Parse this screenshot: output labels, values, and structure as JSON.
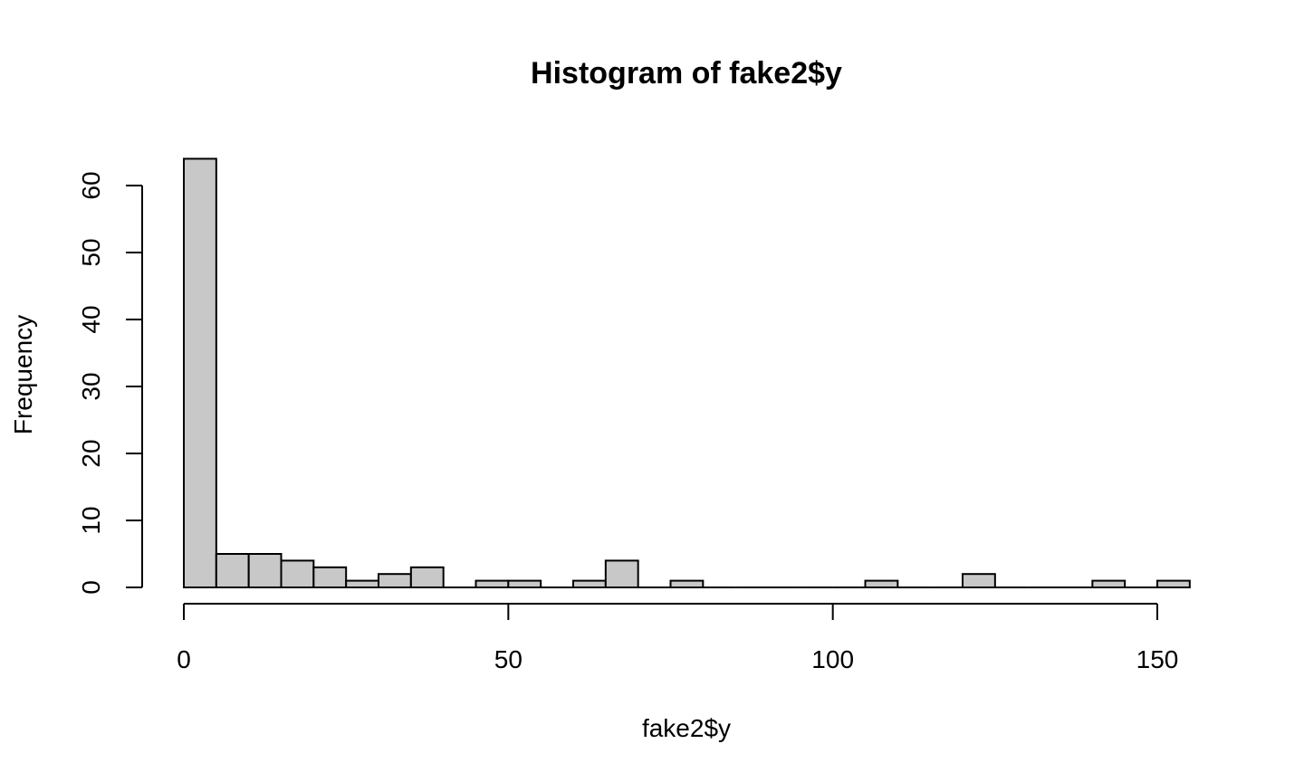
{
  "chart_data": {
    "type": "bar",
    "title": "Histogram of fake2$y",
    "xlabel": "fake2$y",
    "ylabel": "Frequency",
    "bin_width": 5,
    "bins": [
      {
        "x0": 0,
        "x1": 5,
        "count": 64
      },
      {
        "x0": 5,
        "x1": 10,
        "count": 5
      },
      {
        "x0": 10,
        "x1": 15,
        "count": 5
      },
      {
        "x0": 15,
        "x1": 20,
        "count": 4
      },
      {
        "x0": 20,
        "x1": 25,
        "count": 3
      },
      {
        "x0": 25,
        "x1": 30,
        "count": 1
      },
      {
        "x0": 30,
        "x1": 35,
        "count": 2
      },
      {
        "x0": 35,
        "x1": 40,
        "count": 3
      },
      {
        "x0": 40,
        "x1": 45,
        "count": 0
      },
      {
        "x0": 45,
        "x1": 50,
        "count": 1
      },
      {
        "x0": 50,
        "x1": 55,
        "count": 1
      },
      {
        "x0": 55,
        "x1": 60,
        "count": 0
      },
      {
        "x0": 60,
        "x1": 65,
        "count": 1
      },
      {
        "x0": 65,
        "x1": 70,
        "count": 4
      },
      {
        "x0": 70,
        "x1": 75,
        "count": 0
      },
      {
        "x0": 75,
        "x1": 80,
        "count": 1
      },
      {
        "x0": 80,
        "x1": 85,
        "count": 0
      },
      {
        "x0": 85,
        "x1": 90,
        "count": 0
      },
      {
        "x0": 90,
        "x1": 95,
        "count": 0
      },
      {
        "x0": 95,
        "x1": 100,
        "count": 0
      },
      {
        "x0": 100,
        "x1": 105,
        "count": 0
      },
      {
        "x0": 105,
        "x1": 110,
        "count": 1
      },
      {
        "x0": 110,
        "x1": 115,
        "count": 0
      },
      {
        "x0": 115,
        "x1": 120,
        "count": 0
      },
      {
        "x0": 120,
        "x1": 125,
        "count": 2
      },
      {
        "x0": 125,
        "x1": 130,
        "count": 0
      },
      {
        "x0": 130,
        "x1": 135,
        "count": 0
      },
      {
        "x0": 135,
        "x1": 140,
        "count": 0
      },
      {
        "x0": 140,
        "x1": 145,
        "count": 1
      },
      {
        "x0": 145,
        "x1": 150,
        "count": 0
      },
      {
        "x0": 150,
        "x1": 155,
        "count": 1
      }
    ],
    "x_ticks": [
      0,
      50,
      100,
      150
    ],
    "y_ticks": [
      0,
      10,
      20,
      30,
      40,
      50,
      60
    ],
    "xlim": [
      0,
      155
    ],
    "ylim": [
      0,
      64
    ],
    "grid": false,
    "bar_color": "#c8c8c8",
    "bar_edge_color": "#000000"
  }
}
